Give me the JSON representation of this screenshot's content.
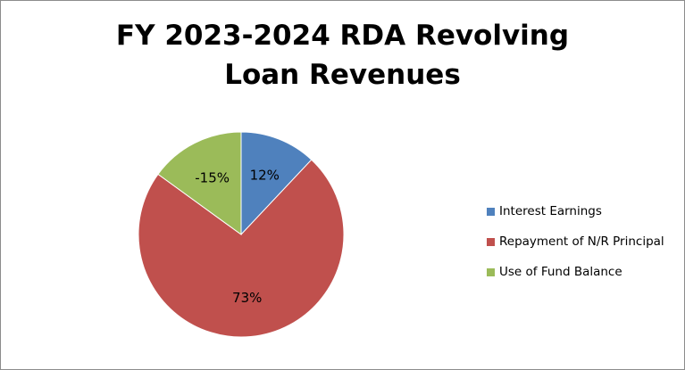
{
  "chart_data": {
    "type": "pie",
    "title": "FY 2023-2024 RDA Revolving Loan Revenues",
    "title_lines": [
      "FY 2023-2024 RDA Revolving",
      "Loan Revenues"
    ],
    "categories": [
      "Interest Earnings",
      "Repayment of N/R Principal",
      "Use of Fund Balance"
    ],
    "values": [
      12,
      73,
      -15
    ],
    "labels": [
      "12%",
      "73%",
      "-15%"
    ],
    "colors": [
      "#4f81bd",
      "#c0504d",
      "#9bbb59"
    ],
    "legend_position": "right"
  }
}
